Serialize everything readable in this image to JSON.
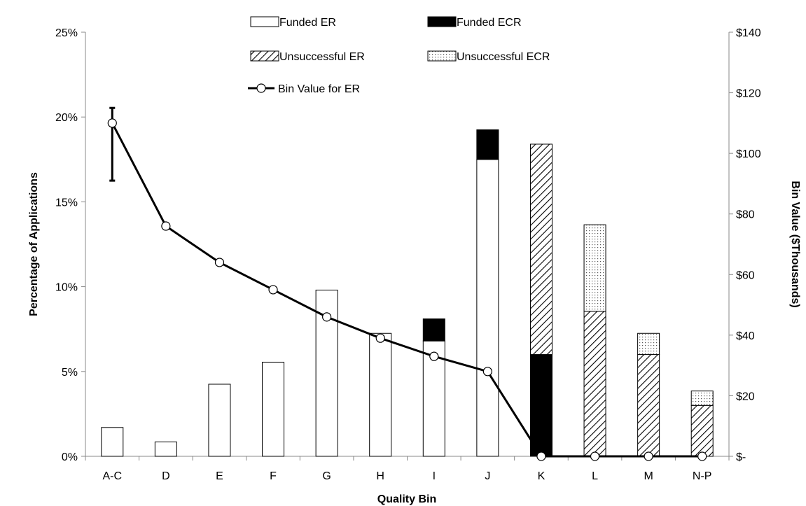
{
  "chart_data": {
    "type": "bar",
    "categories": [
      "A-C",
      "D",
      "E",
      "F",
      "G",
      "H",
      "I",
      "J",
      "K",
      "L",
      "M",
      "N-P"
    ],
    "xlabel": "Quality Bin",
    "ylabel": "Percentage of Applications",
    "y2label": "Bin Value ($Thousands)",
    "ylim": [
      0,
      25
    ],
    "y2lim": [
      0,
      140
    ],
    "y_ticks": [
      "0%",
      "5%",
      "10%",
      "15%",
      "20%",
      "25%"
    ],
    "y2_ticks": [
      "$-",
      "$20",
      "$40",
      "$60",
      "$80",
      "$100",
      "$120",
      "$140"
    ],
    "legend_position": "top-center",
    "stacked": true,
    "series": [
      {
        "name": "Funded ER",
        "style": "white",
        "values": [
          1.7,
          0.85,
          4.25,
          5.55,
          9.8,
          7.25,
          6.8,
          17.5,
          0,
          0,
          0,
          0
        ]
      },
      {
        "name": "Funded ECR",
        "style": "black",
        "values": [
          0,
          0,
          0,
          0,
          0,
          0,
          1.3,
          1.75,
          6.0,
          0,
          0,
          0
        ]
      },
      {
        "name": "Unsuccessful ER",
        "style": "hatch",
        "values": [
          0,
          0,
          0,
          0,
          0,
          0,
          0,
          0,
          12.4,
          8.55,
          6.0,
          3.0
        ]
      },
      {
        "name": "Unsuccessful ECR",
        "style": "dots",
        "values": [
          0,
          0,
          0,
          0,
          0,
          0,
          0,
          0,
          0,
          5.1,
          1.25,
          0.85
        ]
      }
    ],
    "line": {
      "name": "Bin Value for ER",
      "axis": "right",
      "values": [
        110,
        76,
        64,
        55,
        46,
        39,
        33,
        28,
        0,
        0,
        0,
        0
      ],
      "error_bar": {
        "index": 0,
        "low": 91,
        "high": 115
      }
    }
  }
}
